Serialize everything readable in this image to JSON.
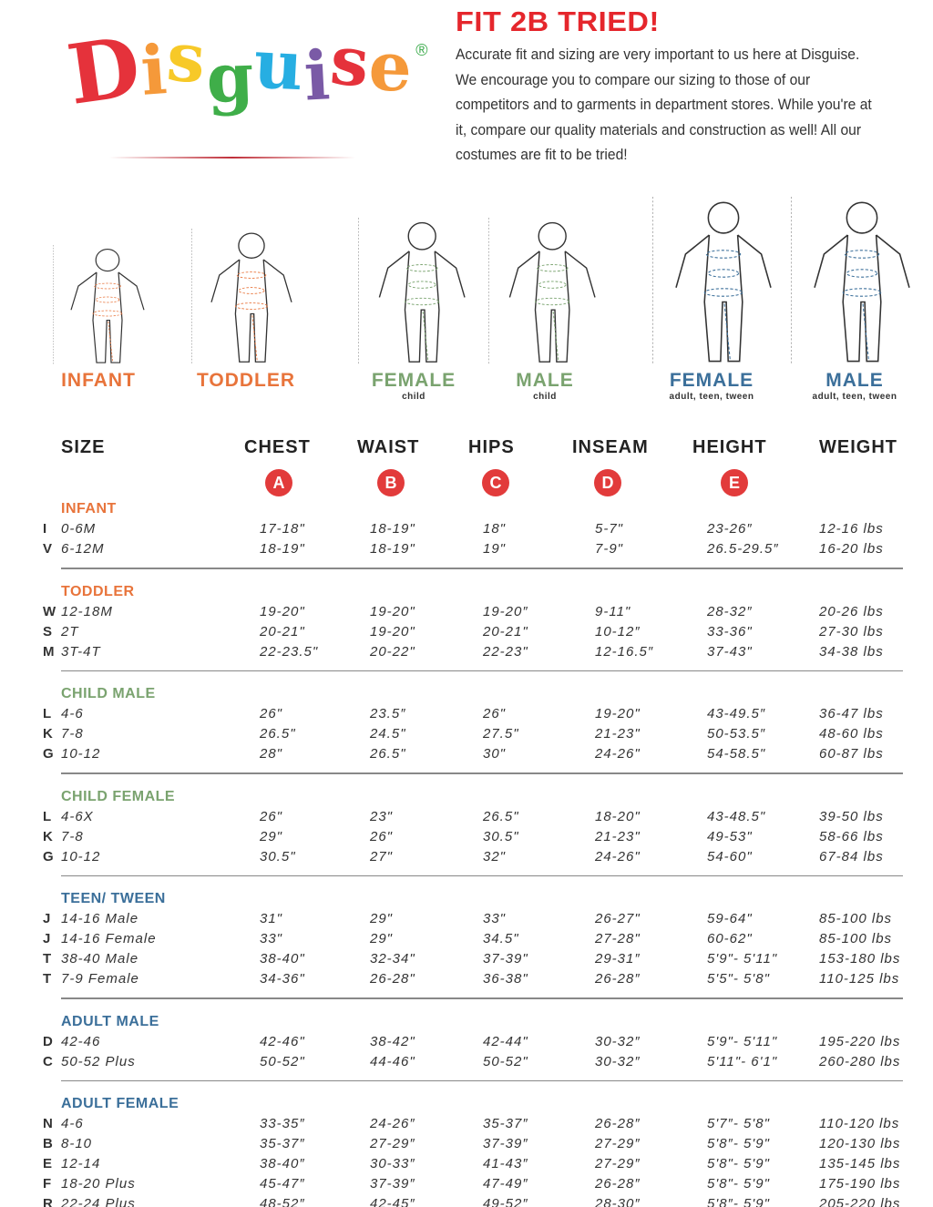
{
  "brand": {
    "logo_text": "Disguise",
    "logo_letters": [
      {
        "ch": "D",
        "color": "#e5323b"
      },
      {
        "ch": "i",
        "color": "#f5993a"
      },
      {
        "ch": "s",
        "color": "#f7c928"
      },
      {
        "ch": "g",
        "color": "#3fae49"
      },
      {
        "ch": "u",
        "color": "#27aee2"
      },
      {
        "ch": "i",
        "color": "#7a5aa6"
      },
      {
        "ch": "s",
        "color": "#e5323b"
      },
      {
        "ch": "e",
        "color": "#f5993a"
      }
    ],
    "registered": "®"
  },
  "title": "FIT 2B TRIED!",
  "intro": "Accurate fit and sizing are very important to us here at Disguise. We encourage you to compare our sizing to those of our competitors and to garments in department stores. While you're at it, compare our quality materials and construction as well! All our costumes are fit to be tried!",
  "figures": [
    {
      "label": "INFANT",
      "sub": "",
      "color": "#e8743b"
    },
    {
      "label": "TODDLER",
      "sub": "",
      "color": "#e8743b"
    },
    {
      "label": "FEMALE",
      "sub": "child",
      "color": "#7aa36f"
    },
    {
      "label": "MALE",
      "sub": "child",
      "color": "#7aa36f"
    },
    {
      "label": "FEMALE",
      "sub": "adult, teen, tween",
      "color": "#3b6f9a"
    },
    {
      "label": "MALE",
      "sub": "adult, teen, tween",
      "color": "#3b6f9a"
    }
  ],
  "headers": {
    "size": "SIZE",
    "chest": "CHEST",
    "waist": "WAIST",
    "hips": "HIPS",
    "inseam": "INSEAM",
    "height": "HEIGHT",
    "weight": "WEIGHT"
  },
  "markers": {
    "chest": "A",
    "waist": "B",
    "hips": "C",
    "inseam": "D",
    "height": "E"
  },
  "sections": [
    {
      "name": "INFANT",
      "color": "#e8743b",
      "rows": [
        [
          "I",
          "0-6M",
          "17-18\"",
          "18-19\"",
          "18\"",
          "5-7\"",
          "23-26″",
          "12-16 lbs"
        ],
        [
          "V",
          "6-12M",
          "18-19\"",
          "18-19\"",
          "19\"",
          "7-9\"",
          "26.5-29.5″",
          "16-20 lbs"
        ]
      ]
    },
    {
      "name": "TODDLER",
      "color": "#e8743b",
      "rows": [
        [
          "W",
          "12-18M",
          "19-20\"",
          "19-20\"",
          "19-20″",
          "9-11\"",
          "28-32″",
          "20-26 lbs"
        ],
        [
          "S",
          "2T",
          "20-21\"",
          "19-20\"",
          "20-21\"",
          "10-12″",
          "33-36\"",
          "27-30 lbs"
        ],
        [
          "M",
          "3T-4T",
          "22-23.5\"",
          "20-22\"",
          "22-23\"",
          "12-16.5″",
          "37-43\"",
          "34-38 lbs"
        ]
      ]
    },
    {
      "name": "CHILD MALE",
      "color": "#7aa36f",
      "rows": [
        [
          "L",
          "4-6",
          "26\"",
          "23.5″",
          "26\"",
          "19-20\"",
          "43-49.5″",
          "36-47 lbs"
        ],
        [
          "K",
          "7-8",
          "26.5\"",
          "24.5\"",
          "27.5\"",
          "21-23\"",
          "50-53.5″",
          "48-60 lbs"
        ],
        [
          "G",
          "10-12",
          "28\"",
          "26.5\"",
          "30\"",
          "24-26\"",
          "54-58.5\"",
          "60-87 lbs"
        ]
      ]
    },
    {
      "name": "CHILD FEMALE",
      "color": "#7aa36f",
      "rows": [
        [
          "L",
          "4-6X",
          "26\"",
          "23\"",
          "26.5\"",
          "18-20\"",
          "43-48.5\"",
          "39-50 lbs"
        ],
        [
          "K",
          "7-8",
          "29\"",
          "26\"",
          "30.5\"",
          "21-23\"",
          "49-53\"",
          "58-66 lbs"
        ],
        [
          "G",
          "10-12",
          "30.5\"",
          "27\"",
          "32\"",
          "24-26\"",
          "54-60\"",
          "67-84 lbs"
        ]
      ]
    },
    {
      "name": "TEEN/ TWEEN",
      "color": "#3b6f9a",
      "rows": [
        [
          "J",
          "14-16 Male",
          "31\"",
          "29\"",
          "33\"",
          "26-27\"",
          "59-64\"",
          "85-100 lbs"
        ],
        [
          "J",
          "14-16 Female",
          "33\"",
          "29\"",
          "34.5\"",
          "27-28\"",
          "60-62\"",
          "85-100 lbs"
        ],
        [
          "T",
          "38-40 Male",
          "38-40\"",
          "32-34\"",
          "37-39\"",
          "29-31″",
          "5'9\"- 5'11\"",
          "153-180 lbs"
        ],
        [
          "T",
          "7-9 Female",
          "34-36\"",
          "26-28\"",
          "36-38\"",
          "26-28″",
          "5'5\"- 5'8\"",
          "110-125 lbs"
        ]
      ]
    },
    {
      "name": "ADULT MALE",
      "color": "#3b6f9a",
      "rows": [
        [
          "D",
          "42-46",
          "42-46\"",
          "38-42\"",
          "42-44\"",
          "30-32″",
          "5'9\"- 5'11\"",
          "195-220 lbs"
        ],
        [
          "C",
          "50-52 Plus",
          "50-52\"",
          "44-46\"",
          "50-52\"",
          "30-32″",
          "5'11\"- 6'1\"",
          "260-280 lbs"
        ]
      ]
    },
    {
      "name": "ADULT FEMALE",
      "color": "#3b6f9a",
      "rows": [
        [
          "N",
          "4-6",
          "33-35″",
          "24-26″",
          "35-37″",
          "26-28″",
          "5'7″- 5'8\"",
          "110-120 lbs"
        ],
        [
          "B",
          "8-10",
          "35-37″",
          "27-29″",
          "37-39″",
          "27-29″",
          "5'8″- 5'9\"",
          "120-130 lbs"
        ],
        [
          "E",
          "12-14",
          "38-40″",
          "30-33″",
          "41-43″",
          "27-29″",
          "5'8\"- 5'9\"",
          "135-145 lbs"
        ],
        [
          "F",
          "18-20 Plus",
          "45-47″",
          "37-39″",
          "47-49″",
          "26-28″",
          "5'8\"- 5'9\"",
          "175-190 lbs"
        ],
        [
          "R",
          "22-24 Plus",
          "48-52″",
          "42-45″",
          "49-52″",
          "28-30″",
          "5'8″- 5'9\"",
          "205-220 lbs"
        ]
      ]
    }
  ],
  "colors": {
    "title": "#e5262c",
    "marker": "#e23b3b"
  }
}
